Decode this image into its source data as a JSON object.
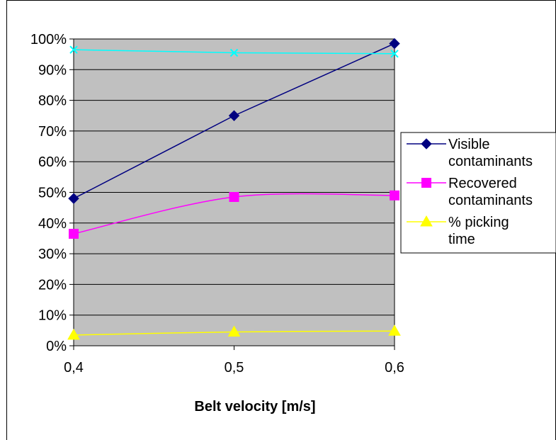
{
  "chart_data": {
    "type": "line",
    "title": "",
    "xlabel": "Belt velocity [m/s]",
    "ylabel": "",
    "categories": [
      "0,4",
      "0,5",
      "0,6"
    ],
    "y_ticks": [
      "0%",
      "10%",
      "20%",
      "30%",
      "40%",
      "50%",
      "60%",
      "70%",
      "80%",
      "90%",
      "100%"
    ],
    "ylim": [
      0,
      100
    ],
    "grid": true,
    "plot_background": "#c0c0c0",
    "legend_position": "right",
    "series": [
      {
        "name": "Visible contaminants",
        "legend_lines": [
          "Visible",
          "contaminants"
        ],
        "values": [
          48,
          75,
          98.5
        ],
        "color": "#000080",
        "marker": "diamond",
        "smooth": false
      },
      {
        "name": "Recovered contaminants",
        "legend_lines": [
          "Recovered",
          "contaminants"
        ],
        "values": [
          36.5,
          48.5,
          49
        ],
        "color": "#ff00ff",
        "marker": "square",
        "smooth": true
      },
      {
        "name": "% picking time",
        "legend_lines": [
          "% picking",
          "time"
        ],
        "values": [
          3.5,
          4.5,
          4.8
        ],
        "color": "#ffff00",
        "marker": "triangle",
        "smooth": true
      },
      {
        "name": "",
        "legend_lines": [],
        "values": [
          96.5,
          95.5,
          95.2
        ],
        "color": "#00ffff",
        "marker": "x",
        "smooth": false
      }
    ]
  }
}
